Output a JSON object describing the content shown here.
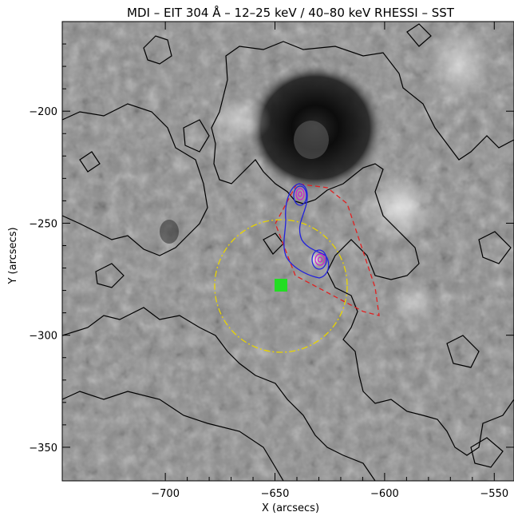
{
  "chart_data": {
    "type": "heatmap",
    "title": "MDI – EIT 304 Å – 12–25 keV / 40–80 keV RHESSI – SST",
    "xlabel": "X (arcsecs)",
    "ylabel": "Y (arcsecs)",
    "xlim": [
      -747,
      -541
    ],
    "ylim": [
      -365,
      -160
    ],
    "xticks": [
      -700,
      -650,
      -600,
      -550
    ],
    "yticks": [
      -200,
      -250,
      -300,
      -350
    ],
    "xtick_labels": [
      "−700",
      "−650",
      "−600",
      "−550"
    ],
    "ytick_labels": [
      "−200",
      "−250",
      "−300",
      "−350"
    ],
    "grid": false,
    "background": "MDI magnetogram (grayscale) with black EIT 304 Å contours",
    "overlays": [
      {
        "name": "12–25 keV RHESSI",
        "kind": "contour",
        "color": "#2222dd",
        "centers": [
          [
            -636,
            -236
          ],
          [
            -627,
            -263
          ]
        ]
      },
      {
        "name": "40–80 keV RHESSI",
        "kind": "contour",
        "color": "#cc22cc",
        "centers": [
          [
            -636,
            -236
          ],
          [
            -627,
            -264
          ]
        ]
      },
      {
        "name": "SST field of view",
        "kind": "dashed-outline",
        "color": "#e02222"
      },
      {
        "name": "circle",
        "kind": "dash-dot-circle",
        "color": "#e8d400",
        "center": [
          -648,
          -273
        ],
        "radius": 25
      },
      {
        "name": "marker",
        "kind": "square",
        "color": "#22dd22",
        "center": [
          -645,
          -276
        ]
      }
    ]
  }
}
